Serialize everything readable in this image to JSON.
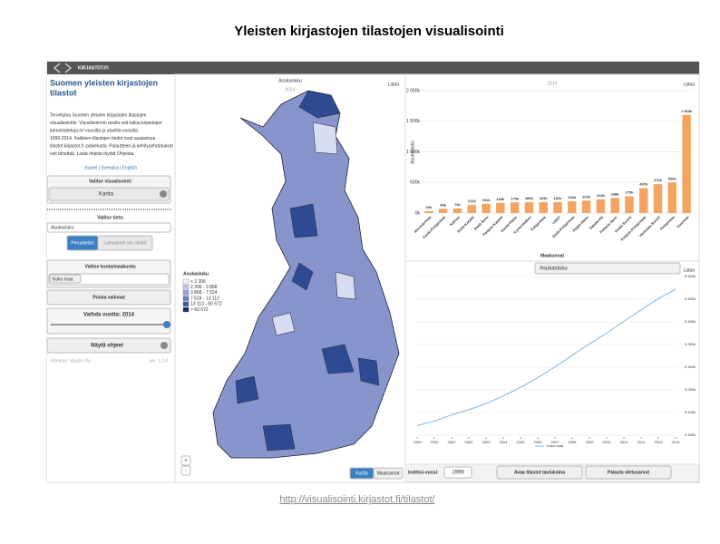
{
  "title": "Yleisten kirjastojen tilastojen visualisointi",
  "url": "http://visualisointi.kirjastot.fi/tilastot/",
  "app": {
    "logo": "KIRJASTOT.FI",
    "sidebar": {
      "heading": [
        "Suomen yleisten kirjastojen",
        "tilastot"
      ],
      "intro": [
        "Tervetuloa Suomen yleisten kirjastojen tilastojen",
        "visualisointiin. Visualisoinnin avulla voit tutkia kirjastojen",
        "toimintatietoja eri vuosilta ja alueilta vuosilta",
        "1999-2014. Kaikkien tilastojen tiedot ovat saatavissa",
        "tilastot.kirjastot.fi -palvelusta. Palautteen ja kehitysehdotukset",
        "voit lähettää. Lisää ohjeita löydät Ohjeista."
      ],
      "languages": "Suomi | Svenska | English",
      "visualization_label": "Valitse visualisointi:",
      "visualization_value": "Kartta",
      "indicator_label": "Valitse tieto:",
      "indicator_value": "Asukasluku",
      "tabs": [
        "Perustiedot",
        "Lainaukset ym. tiedot"
      ],
      "municipality_label": "Valitse kunta/maakunta:",
      "municipality_tag": "Koko maa",
      "clear_button": "Poista valinnat",
      "year_label": "Vaihda vuotta: 2014",
      "help_button": "Näytä ohjeet",
      "credit": "Toteutus: Vaadin Oy",
      "version": "ver. 1.2.0"
    },
    "map": {
      "title": "Asukasluku",
      "year": "2014",
      "download": "Lataa",
      "legend_title": "Asukasluku",
      "legend": [
        {
          "label": "< 2 306",
          "color": "#eef0fa"
        },
        {
          "label": "2 306 - 3 868",
          "color": "#c6cbe8"
        },
        {
          "label": "3 868 - 7 524",
          "color": "#9aa4d6"
        },
        {
          "label": "7 524 - 13 113",
          "color": "#6a7bbf"
        },
        {
          "label": "13 113 - 60 672",
          "color": "#3b559f"
        },
        {
          "label": "> 60 672",
          "color": "#12306e"
        }
      ],
      "zoom": [
        "+",
        "-"
      ],
      "tabs": [
        "Kartta",
        "Maakunnat"
      ]
    },
    "bar_chart": {
      "type": "bar",
      "title": "2014",
      "download": "Lataa",
      "y_label": "Asukasluku",
      "x_label": "Maakunnat",
      "color": "#f4a460",
      "categories": [
        "Ahvenanmaa",
        "Keski-Pohjanmaa",
        "Kainuu",
        "Etelä-Karjala",
        "Etelä-Savo",
        "Pohjois-Karjala",
        "Kanta-Häme",
        "Kymenlaakso",
        "Pohjanmaa",
        "Lappi",
        "Etelä-Pohjanmaa",
        "Päijät-Häme",
        "Satakunta",
        "Pohjois-Savo",
        "Keski-Suomi",
        "Pohjois-Pohjanmaa",
        "Varsinais-Suomi",
        "Pirkanmaa",
        "Uusimaa"
      ],
      "values": [
        29000,
        69000,
        76000,
        131000,
        151000,
        165000,
        175000,
        180000,
        181000,
        181000,
        193000,
        202000,
        223000,
        248000,
        275000,
        407000,
        472000,
        500000,
        1603000
      ],
      "value_labels": [
        "29k",
        "69k",
        "76k",
        "131k",
        "151k",
        "165k",
        "175k",
        "180k",
        "181k",
        "181k",
        "193k",
        "202k",
        "223k",
        "248k",
        "275k",
        "407k",
        "472k",
        "500k",
        "1 603k"
      ],
      "ylim": [
        0,
        2000000
      ],
      "yticks": [
        {
          "value": 0,
          "label": "0k"
        },
        {
          "value": 500000,
          "label": "500k"
        },
        {
          "value": 1000000,
          "label": "1 000k"
        },
        {
          "value": 1500000,
          "label": "1 500k"
        },
        {
          "value": 2000000,
          "label": "2 000k"
        }
      ]
    },
    "line_chart": {
      "type": "line",
      "title": "Asukasluku",
      "download": "Lataa",
      "x": [
        1999,
        2000,
        2001,
        2002,
        2003,
        2004,
        2005,
        2006,
        2007,
        2008,
        2009,
        2010,
        2011,
        2012,
        2013,
        2014
      ],
      "xlim": [
        1999,
        2014
      ],
      "xticks": [
        1999,
        2000,
        2001,
        2002,
        2003,
        2004,
        2005,
        2006,
        2007,
        2008,
        2009,
        2010,
        2011,
        2012,
        2013,
        2014
      ],
      "series": [
        {
          "name": "Koko maa",
          "color": "#7fb3e0",
          "values": [
            5171302,
            5181115,
            5194901,
            5206295,
            5219732,
            5236611,
            5255580,
            5276955,
            5300484,
            5326314,
            5351427,
            5375276,
            5401267,
            5426674,
            5451270,
            5471753
          ]
        }
      ],
      "ylim": [
        5150000,
        5500000
      ],
      "yticks": [
        {
          "value": 5150000,
          "label": "5 150k"
        },
        {
          "value": 5200000,
          "label": "5 200k"
        },
        {
          "value": 5250000,
          "label": "5 250k"
        },
        {
          "value": 5300000,
          "label": "5 300k"
        },
        {
          "value": 5350000,
          "label": "5 350k"
        },
        {
          "value": 5400000,
          "label": "5 400k"
        },
        {
          "value": 5450000,
          "label": "5 450k"
        },
        {
          "value": 5500000,
          "label": "5 500k"
        }
      ]
    },
    "footer": {
      "index_label": "Indeksi-vuosi:",
      "index_value": "1999",
      "buttons": [
        "Avaa tilastot taulukoina",
        "Palauta oletusarvot"
      ]
    }
  }
}
